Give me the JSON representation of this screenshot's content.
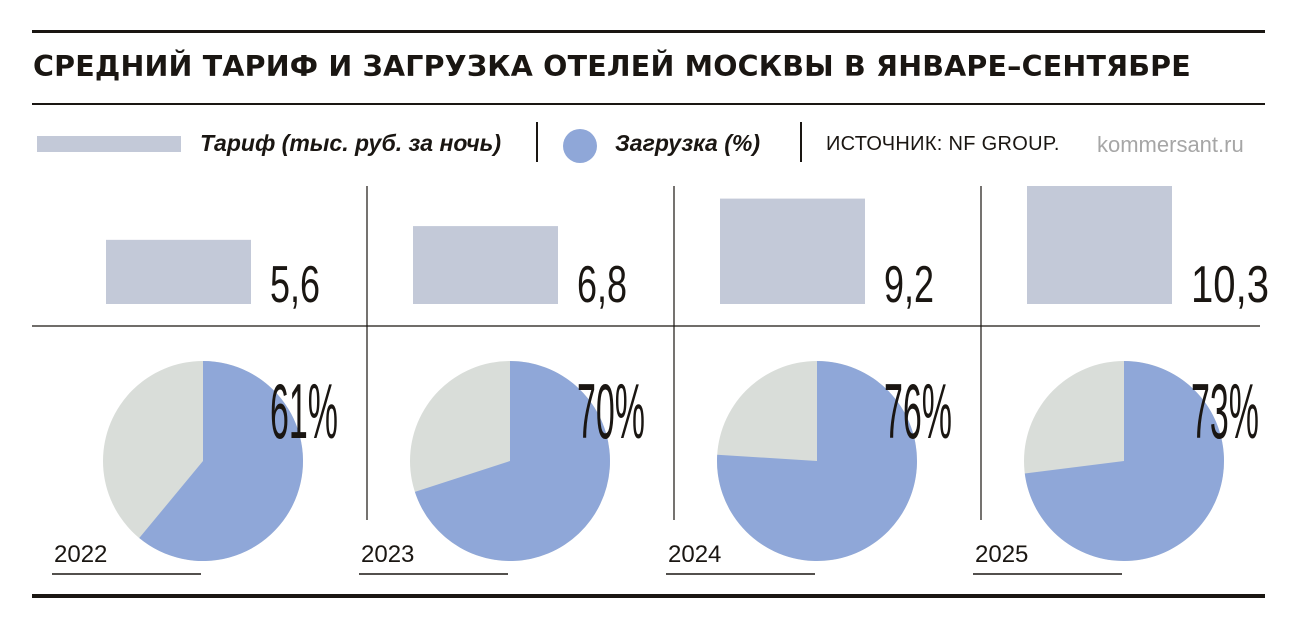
{
  "title": "СРЕДНИЙ ТАРИФ И ЗАГРУЗКА ОТЕЛЕЙ МОСКВЫ В ЯНВАРЕ–СЕНТЯБРЕ",
  "legend": {
    "tariff_label": "Тариф (тыс. руб. за ночь)",
    "load_label": "Загрузка (%)",
    "source": "ИСТОЧНИК: NF GROUP.",
    "brand": "kommersant.ru"
  },
  "colors": {
    "tariff_bar": "#c3c9d8",
    "load_filled": "#8fa7d8",
    "load_rest": "#d9ddd9",
    "rule": "#1a1612"
  },
  "chart_data": {
    "type": "bar",
    "title": "СРЕДНИЙ ТАРИФ И ЗАГРУЗКА ОТЕЛЕЙ МОСКВЫ В ЯНВАРЕ–СЕНТЯБРЕ",
    "categories": [
      "2022",
      "2023",
      "2024",
      "2025"
    ],
    "series": [
      {
        "name": "Тариф (тыс. руб. за ночь)",
        "values": [
          5.6,
          6.8,
          9.2,
          10.3
        ],
        "labels": [
          "5,6",
          "6,8",
          "9,2",
          "10,3"
        ]
      },
      {
        "name": "Загрузка (%)",
        "type": "pie",
        "values": [
          61,
          70,
          76,
          73
        ],
        "labels": [
          "61%",
          "70%",
          "76%",
          "73%"
        ]
      }
    ]
  }
}
